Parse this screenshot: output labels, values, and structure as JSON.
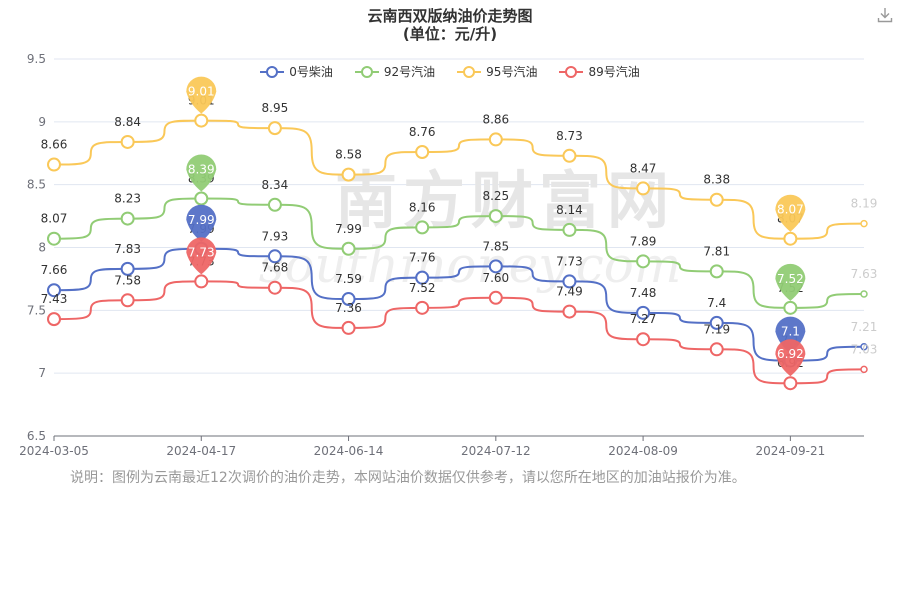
{
  "title": "云南西双版纳油价走势图",
  "subtitle": "(单位：元/升)",
  "note": "说明：图例为云南最近12次调价的油价走势，本网站油价数据仅供参考，请以您所在地区的加油站报价为准。",
  "watermark": "南方财富网",
  "watermark_en": "southmoney.com",
  "icons": {
    "download": "download-icon"
  },
  "chart_data": {
    "type": "line",
    "title": "云南西双版纳油价走势图",
    "subtitle": "(单位：元/升)",
    "ylim": [
      6.5,
      9.5
    ],
    "y_ticks": [
      "6.5",
      "7",
      "7.5",
      "8",
      "8.5",
      "9",
      "9.5"
    ],
    "x_tick_labels": [
      "2024-03-05",
      "2024-04-17",
      "2024-06-14",
      "2024-07-12",
      "2024-08-09",
      "2024-09-21"
    ],
    "x_tick_index": [
      0,
      2,
      4,
      6,
      8,
      10
    ],
    "legend_position": "top-center",
    "grid": "horizontal",
    "series": [
      {
        "name": "0号柴油",
        "color": "#5470c6",
        "values": [
          7.66,
          7.83,
          7.99,
          7.93,
          7.59,
          7.76,
          7.85,
          7.73,
          7.48,
          7.4,
          7.1,
          7.21
        ],
        "labels": [
          "7.66",
          "7.83",
          "7.99",
          "7.93",
          "7.59",
          "7.76",
          "7.85",
          "7.73",
          "7.48",
          "7.4",
          "7.1",
          "7.21"
        ],
        "max_index": 2,
        "min_index": 10
      },
      {
        "name": "92号汽油",
        "color": "#91cc75",
        "values": [
          8.07,
          8.23,
          8.39,
          8.34,
          7.99,
          8.16,
          8.25,
          8.14,
          7.89,
          7.81,
          7.52,
          7.63
        ],
        "labels": [
          "8.07",
          "8.23",
          "8.39",
          "8.34",
          "7.99",
          "8.16",
          "8.25",
          "8.14",
          "7.89",
          "7.81",
          "7.52",
          "7.63"
        ],
        "max_index": 2,
        "min_index": 10
      },
      {
        "name": "95号汽油",
        "color": "#fac858",
        "values": [
          8.66,
          8.84,
          9.01,
          8.95,
          8.58,
          8.76,
          8.86,
          8.73,
          8.47,
          8.38,
          8.07,
          8.19
        ],
        "labels": [
          "8.66",
          "8.84",
          "9.01",
          "8.95",
          "8.58",
          "8.76",
          "8.86",
          "8.73",
          "8.47",
          "8.38",
          "8.07",
          "8.19"
        ],
        "max_index": 2,
        "min_index": 10
      },
      {
        "name": "89号汽油",
        "color": "#ee6666",
        "values": [
          7.43,
          7.58,
          7.73,
          7.68,
          7.36,
          7.52,
          7.6,
          7.49,
          7.27,
          7.19,
          6.92,
          7.03
        ],
        "labels": [
          "7.43",
          "7.58",
          "7.73",
          "7.68",
          "7.36",
          "7.52",
          "7.60",
          "7.49",
          "7.27",
          "7.19",
          "6.92",
          "7.03"
        ],
        "max_index": 2,
        "min_index": 10
      }
    ]
  }
}
